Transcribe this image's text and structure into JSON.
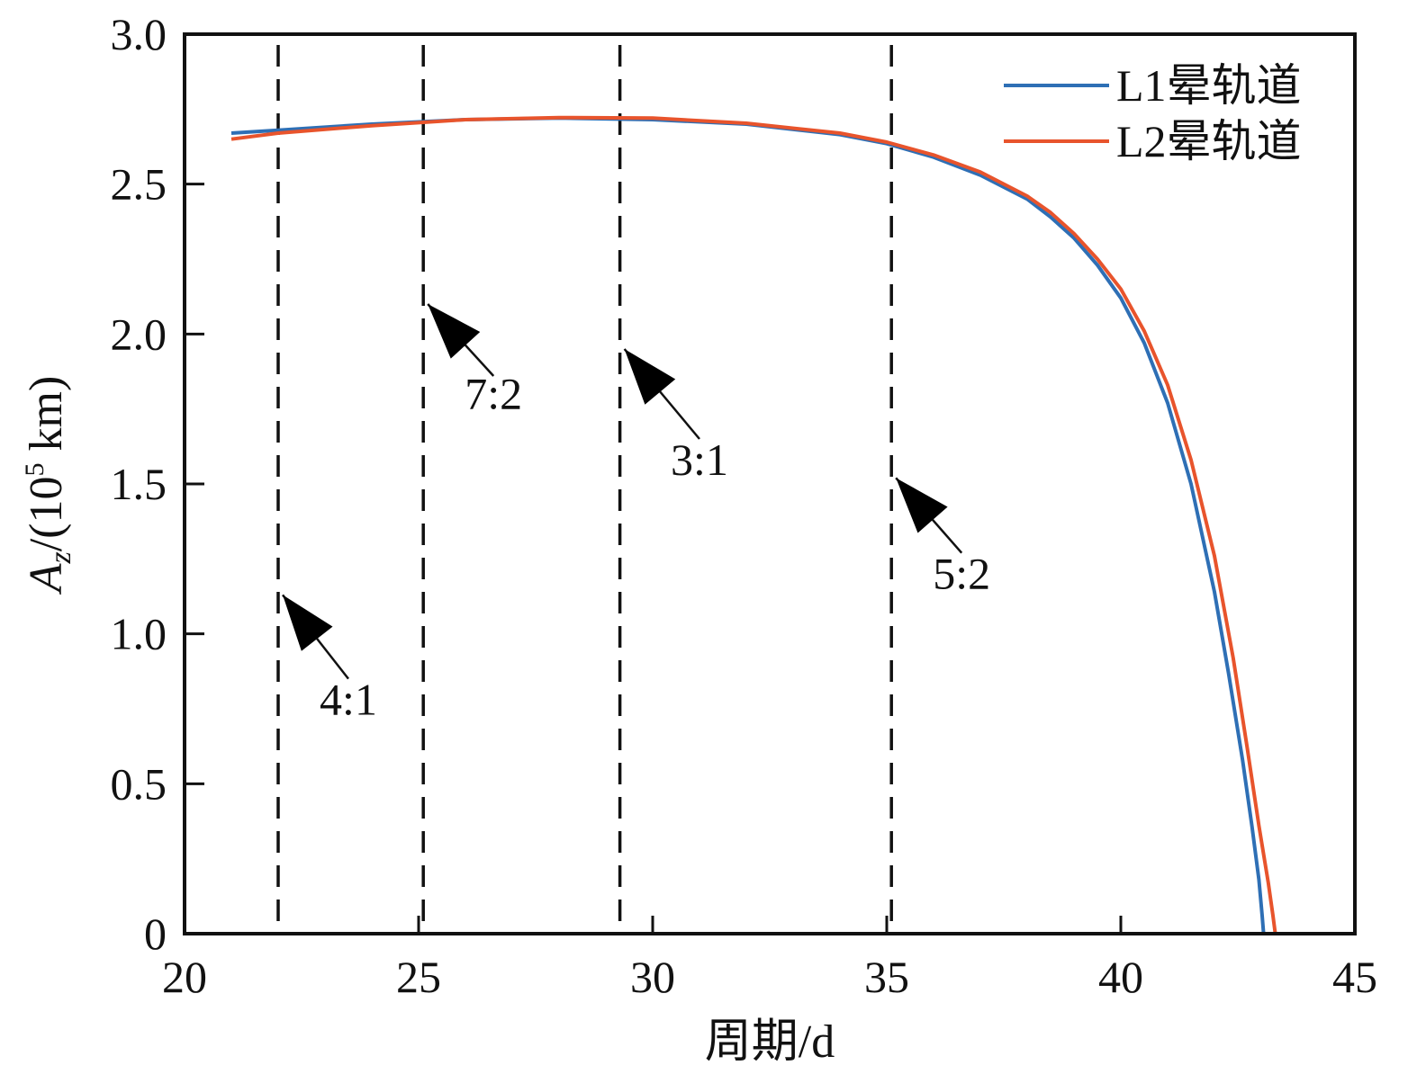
{
  "chart_data": {
    "type": "line",
    "xlabel": "周期/d",
    "ylabel": "A_z/(10^5 km)",
    "ylabel_parts": {
      "main": "A",
      "sub": "z",
      "mid": "/(10",
      "sup": "5",
      "tail": " km)"
    },
    "xlim": [
      20,
      45
    ],
    "ylim": [
      0,
      3.0
    ],
    "xticks": [
      20,
      25,
      30,
      35,
      40,
      45
    ],
    "xtick_labels": [
      "20",
      "25",
      "30",
      "35",
      "40",
      "45"
    ],
    "yticks": [
      0,
      0.5,
      1.0,
      1.5,
      2.0,
      2.5,
      3.0
    ],
    "ytick_labels": [
      "0",
      "0.5",
      "1.0",
      "1.5",
      "2.0",
      "2.5",
      "3.0"
    ],
    "grid": false,
    "legend_position": "top-right",
    "series": [
      {
        "name": "L1晕轨道",
        "color": "#2e6fb5",
        "x": [
          21.0,
          22.0,
          24.0,
          26.0,
          28.0,
          30.0,
          32.0,
          34.0,
          35.0,
          36.0,
          37.0,
          38.0,
          38.5,
          39.0,
          39.5,
          40.0,
          40.5,
          41.0,
          41.5,
          42.0,
          42.3,
          42.6,
          42.8,
          42.95,
          43.02,
          43.05
        ],
        "y": [
          2.67,
          2.68,
          2.7,
          2.715,
          2.72,
          2.715,
          2.7,
          2.665,
          2.635,
          2.59,
          2.53,
          2.45,
          2.39,
          2.32,
          2.23,
          2.12,
          1.97,
          1.77,
          1.5,
          1.14,
          0.87,
          0.58,
          0.36,
          0.18,
          0.06,
          0.0
        ]
      },
      {
        "name": "L2晕轨道",
        "color": "#e8542c",
        "x": [
          21.0,
          22.0,
          24.0,
          26.0,
          28.0,
          30.0,
          32.0,
          34.0,
          35.0,
          36.0,
          37.0,
          38.0,
          38.5,
          39.0,
          39.5,
          40.0,
          40.5,
          41.0,
          41.5,
          42.0,
          42.4,
          42.7,
          42.95,
          43.15,
          43.25,
          43.3
        ],
        "y": [
          2.65,
          2.67,
          2.695,
          2.715,
          2.722,
          2.72,
          2.703,
          2.67,
          2.64,
          2.597,
          2.54,
          2.46,
          2.405,
          2.335,
          2.25,
          2.15,
          2.01,
          1.83,
          1.58,
          1.26,
          0.92,
          0.62,
          0.36,
          0.17,
          0.06,
          0.0
        ]
      }
    ],
    "resonances": [
      {
        "x": 22.0,
        "label": "4:1",
        "arrow_tip_y": 1.13,
        "arrow_tail": [
          23.5,
          0.85
        ],
        "label_at": [
          23.5,
          0.73
        ]
      },
      {
        "x": 25.1,
        "label": "7:2",
        "arrow_tip_y": 2.1,
        "arrow_tail": [
          26.6,
          1.86
        ],
        "label_at": [
          26.6,
          1.75
        ]
      },
      {
        "x": 29.3,
        "label": "3:1",
        "arrow_tip_y": 1.95,
        "arrow_tail": [
          31.0,
          1.65
        ],
        "label_at": [
          31.0,
          1.53
        ]
      },
      {
        "x": 35.1,
        "label": "5:2",
        "arrow_tip_y": 1.52,
        "arrow_tail": [
          36.6,
          1.27
        ],
        "label_at": [
          36.6,
          1.15
        ]
      }
    ]
  }
}
